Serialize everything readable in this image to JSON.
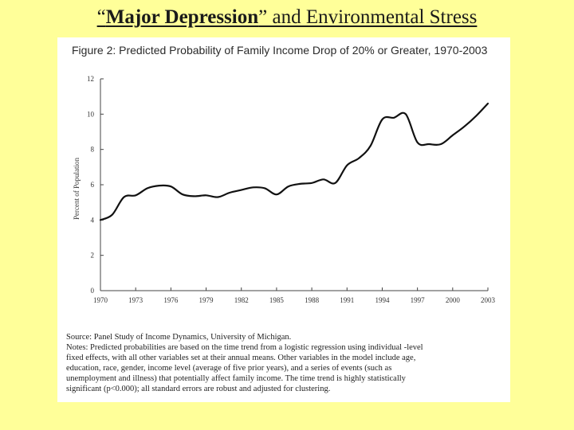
{
  "slide": {
    "title_part1": "“",
    "title_bold": "Major Depression",
    "title_part2": "” and Environmental Stress"
  },
  "figure": {
    "caption": "Figure 2: Predicted Probability of Family Income Drop of 20% or Greater, 1970-2003",
    "source": "Source: Panel Study of Income Dynamics, University of Michigan.",
    "notes": [
      "Notes: Predicted probabilities are based on the time trend from a logistic regression using individual -level",
      "fixed effects, with all other variables set at their annual means. Other variables in the model include age,",
      "education, race, gender, income level (average of five prior years), and a series of events (such as",
      "unemployment and illness) that potentially affect family income. The time trend is highly statistically",
      "significant (p<0.000); all standard errors are robust and adjusted for clustering."
    ]
  },
  "chart_data": {
    "type": "line",
    "title": "Figure 2: Predicted Probability of Family Income Drop of 20% or Greater, 1970-2003",
    "xlabel": "",
    "ylabel": "Percent of Population",
    "xlim": [
      1970,
      2003
    ],
    "ylim": [
      0,
      12
    ],
    "x_ticks": [
      "1970",
      "1973",
      "1976",
      "1979",
      "1982",
      "1985",
      "1988",
      "1991",
      "1994",
      "1997",
      "2000",
      "2003"
    ],
    "y_ticks": [
      "0",
      "2",
      "4",
      "6",
      "8",
      "10",
      "12"
    ],
    "grid": false,
    "line_color": "#111111",
    "series": [
      {
        "x": [
          1970,
          1971,
          1972,
          1973,
          1974,
          1975,
          1976,
          1977,
          1978,
          1979,
          1980,
          1981,
          1982,
          1983,
          1984,
          1985,
          1986,
          1987,
          1988,
          1989,
          1990,
          1991,
          1992,
          1993,
          1994,
          1995,
          1996,
          1997,
          1998,
          1999,
          2000,
          2001,
          2002,
          2003
        ],
        "y": [
          4.0,
          4.3,
          5.3,
          5.4,
          5.8,
          5.95,
          5.9,
          5.45,
          5.35,
          5.4,
          5.3,
          5.55,
          5.7,
          5.85,
          5.8,
          5.45,
          5.9,
          6.05,
          6.1,
          6.3,
          6.1,
          7.1,
          7.5,
          8.2,
          9.7,
          9.8,
          10.0,
          8.4,
          8.3,
          8.3,
          8.8,
          9.3,
          9.9,
          10.6
        ]
      }
    ]
  }
}
